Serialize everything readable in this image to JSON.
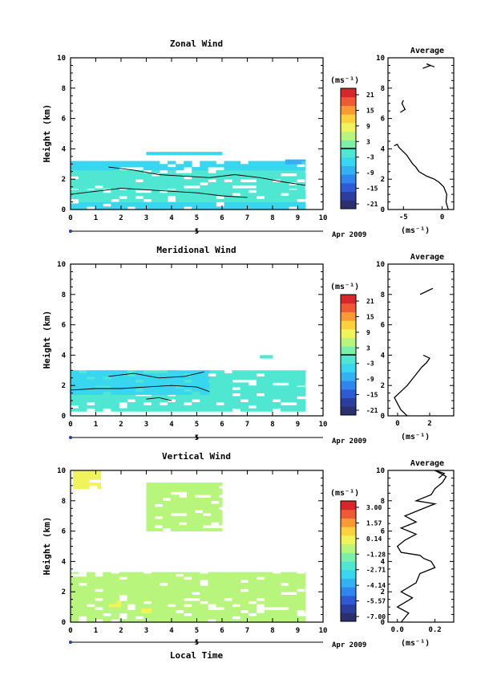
{
  "colors": {
    "colorbar": [
      "#2a2f6e",
      "#2b3e9e",
      "#2f5ad6",
      "#2f86ee",
      "#33b1f2",
      "#39d6f0",
      "#4fe7d2",
      "#7df0a8",
      "#b8f57c",
      "#eef45a",
      "#fbd23e",
      "#f99a35",
      "#ef5a33",
      "#d6282b"
    ],
    "blank": "#ffffff",
    "axis": "#000000"
  },
  "date_label": "Apr 2009",
  "date_tick_label": "5",
  "xlabel_bottom": "Local Time",
  "panels": [
    {
      "title": "Zonal Wind",
      "ylabel": "Height (km)",
      "unit_label": "(ms⁻¹)",
      "colorbar_ticks": [
        "21",
        "15",
        "9",
        "3",
        "-3",
        "-9",
        "-15",
        "-21"
      ],
      "colorbar_range": [
        -24,
        24
      ],
      "profile_title": "Average",
      "profile_xticks": [
        "-5",
        "0"
      ],
      "profile_xlabel": "(ms⁻¹)"
    },
    {
      "title": "Meridional Wind",
      "ylabel": "Height (km)",
      "unit_label": "(ms⁻¹)",
      "colorbar_ticks": [
        "21",
        "15",
        "9",
        "3",
        "-3",
        "-9",
        "-15",
        "-21"
      ],
      "colorbar_range": [
        -24,
        24
      ],
      "profile_title": "Average",
      "profile_xticks": [
        "0",
        "2"
      ],
      "profile_xlabel": "(ms⁻¹)"
    },
    {
      "title": "Vertical Wind",
      "ylabel": "Height (km)",
      "unit_label": "(ms⁻¹)",
      "colorbar_ticks": [
        "3.00",
        "1.57",
        "0.14",
        "-1.28",
        "-2.71",
        "-4.14",
        "-5.57",
        "-7.00"
      ],
      "colorbar_range": [
        -7.7,
        3.7
      ],
      "profile_title": "Average",
      "profile_xticks": [
        "0.0",
        "0.2"
      ],
      "profile_xlabel": "(ms⁻¹)"
    }
  ],
  "chart_data": [
    {
      "type": "heatmap",
      "title": "Zonal Wind",
      "xlabel": "",
      "ylabel": "Height (km)",
      "xlim": [
        0,
        10
      ],
      "ylim": [
        0,
        10
      ],
      "xticks": [
        0,
        1,
        2,
        3,
        4,
        5,
        6,
        7,
        8,
        9,
        10
      ],
      "yticks": [
        0,
        2,
        4,
        6,
        8,
        10
      ],
      "colorbar_unit": "(ms⁻¹)",
      "regions": [
        {
          "t0": 0.0,
          "t1": 9.3,
          "z0": 0.0,
          "z1": 0.5,
          "value": -3,
          "color_index": 5
        },
        {
          "t0": 0.0,
          "t1": 9.3,
          "z0": 0.5,
          "z1": 1.4,
          "value": 0,
          "color_index": 6
        },
        {
          "t0": 0.0,
          "t1": 9.3,
          "z0": 1.4,
          "z1": 2.6,
          "value": 0,
          "color_index": 6
        },
        {
          "t0": 0.0,
          "t1": 9.3,
          "z0": 2.6,
          "z1": 3.2,
          "value": -3,
          "color_index": 5
        },
        {
          "t0": 3.0,
          "t1": 6.0,
          "z0": 3.6,
          "z1": 3.8,
          "value": -3,
          "color_index": 5
        },
        {
          "t0": 8.5,
          "t1": 9.3,
          "z0": 3.0,
          "z1": 3.3,
          "value": -6,
          "color_index": 4
        }
      ],
      "contours": [
        {
          "level": 0,
          "points": [
            [
              0.0,
              1.0
            ],
            [
              1.0,
              1.2
            ],
            [
              2.0,
              1.4
            ],
            [
              3.0,
              1.3
            ],
            [
              4.0,
              1.2
            ],
            [
              5.0,
              1.1
            ],
            [
              6.0,
              0.9
            ],
            [
              7.0,
              0.8
            ]
          ]
        },
        {
          "level": 0,
          "points": [
            [
              1.5,
              2.8
            ],
            [
              2.5,
              2.6
            ],
            [
              3.5,
              2.3
            ],
            [
              4.5,
              2.2
            ],
            [
              5.5,
              2.1
            ],
            [
              6.5,
              2.3
            ],
            [
              7.5,
              2.1
            ],
            [
              8.5,
              1.8
            ],
            [
              9.3,
              1.6
            ]
          ]
        }
      ],
      "profile": {
        "title": "Average",
        "xlim": [
          -7,
          1.5
        ],
        "ylim": [
          0,
          10
        ],
        "x": [
          0.8,
          0.5,
          0.6,
          0.2,
          -0.4,
          -1.0,
          -2.0,
          -3.0,
          -3.4,
          -3.8,
          -4.2,
          -4.6,
          -5.2,
          -5.6,
          -5.8,
          -6.2,
          -5.4,
          -4.8,
          -5.0,
          -5.2,
          -5.0,
          -2.5,
          -1.5,
          -2.0,
          -1.0
        ],
        "z": [
          0.0,
          0.5,
          1.0,
          1.5,
          1.8,
          2.0,
          2.2,
          2.5,
          2.8,
          3.0,
          3.3,
          3.6,
          3.9,
          4.1,
          4.3,
          4.2,
          6.4,
          6.6,
          6.8,
          7.0,
          7.2,
          9.3,
          9.5,
          9.6,
          9.4
        ]
      }
    },
    {
      "type": "heatmap",
      "title": "Meridional Wind",
      "xlabel": "",
      "ylabel": "Height (km)",
      "xlim": [
        0,
        10
      ],
      "ylim": [
        0,
        10
      ],
      "xticks": [
        0,
        1,
        2,
        3,
        4,
        5,
        6,
        7,
        8,
        9,
        10
      ],
      "yticks": [
        0,
        2,
        4,
        6,
        8,
        10
      ],
      "colorbar_unit": "(ms⁻¹)",
      "regions": [
        {
          "t0": 0.0,
          "t1": 9.3,
          "z0": 0.3,
          "z1": 2.0,
          "value": 0,
          "color_index": 6
        },
        {
          "t0": 0.0,
          "t1": 9.3,
          "z0": 2.0,
          "z1": 3.0,
          "value": 0,
          "color_index": 6
        },
        {
          "t0": 0.0,
          "t1": 5.5,
          "z0": 1.4,
          "z1": 3.0,
          "value": -3,
          "color_index": 5
        },
        {
          "t0": 7.5,
          "t1": 8.0,
          "z0": 3.8,
          "z1": 4.0,
          "value": 0,
          "color_index": 6
        },
        {
          "t0": 5.8,
          "t1": 5.9,
          "z0": 6.6,
          "z1": 6.7,
          "value": 0,
          "color_index": 6
        }
      ],
      "contours": [
        {
          "level": 0,
          "points": [
            [
              0.0,
              1.7
            ],
            [
              1.0,
              1.8
            ],
            [
              2.0,
              1.8
            ],
            [
              3.0,
              1.9
            ],
            [
              4.0,
              2.0
            ],
            [
              5.0,
              1.9
            ],
            [
              5.5,
              1.6
            ]
          ]
        },
        {
          "level": 0,
          "points": [
            [
              1.5,
              2.6
            ],
            [
              2.5,
              2.8
            ],
            [
              3.5,
              2.5
            ],
            [
              4.5,
              2.6
            ],
            [
              5.3,
              2.9
            ]
          ]
        },
        {
          "level": 0,
          "points": [
            [
              3.0,
              1.1
            ],
            [
              3.5,
              1.2
            ],
            [
              4.0,
              1.0
            ]
          ]
        }
      ],
      "profile": {
        "title": "Average",
        "xlim": [
          -0.6,
          3.5
        ],
        "ylim": [
          0,
          10
        ],
        "x": [
          0.6,
          0.2,
          0.0,
          -0.2,
          0.2,
          0.6,
          0.9,
          1.2,
          1.5,
          1.8,
          2.0,
          1.6,
          2.2,
          1.8,
          1.4,
          1.8
        ],
        "z": [
          0.0,
          0.4,
          0.8,
          1.2,
          1.6,
          2.0,
          2.4,
          2.8,
          3.2,
          3.5,
          3.8,
          4.0,
          8.4,
          8.2,
          8.0,
          8.2
        ]
      }
    },
    {
      "type": "heatmap",
      "title": "Vertical Wind",
      "xlabel": "Local Time",
      "ylabel": "Height (km)",
      "xlim": [
        0,
        10
      ],
      "ylim": [
        0,
        10
      ],
      "xticks": [
        0,
        1,
        2,
        3,
        4,
        5,
        6,
        7,
        8,
        9,
        10
      ],
      "yticks": [
        0,
        2,
        4,
        6,
        8,
        10
      ],
      "colorbar_unit": "(ms⁻¹)",
      "regions": [
        {
          "t0": 0.0,
          "t1": 9.3,
          "z0": 0.0,
          "z1": 3.3,
          "value": 0.14,
          "color_index": 8
        },
        {
          "t0": 3.0,
          "t1": 6.0,
          "z0": 6.0,
          "z1": 9.2,
          "value": 0.14,
          "color_index": 8
        },
        {
          "t0": 0.1,
          "t1": 1.2,
          "z0": 8.8,
          "z1": 10.0,
          "value": 1.0,
          "color_index": 9
        },
        {
          "t0": 1.5,
          "t1": 2.0,
          "z0": 1.0,
          "z1": 1.4,
          "value": 1.0,
          "color_index": 9
        },
        {
          "t0": 2.8,
          "t1": 3.2,
          "z0": 0.6,
          "z1": 0.9,
          "value": 1.0,
          "color_index": 9
        }
      ],
      "contours": [],
      "profile": {
        "title": "Average",
        "xlim": [
          -0.05,
          0.3
        ],
        "ylim": [
          0,
          10
        ],
        "x": [
          0.02,
          0.06,
          0.0,
          0.08,
          0.02,
          0.1,
          0.12,
          0.2,
          0.18,
          0.14,
          0.12,
          0.02,
          0.0,
          0.04,
          0.1,
          0.02,
          0.1,
          0.04,
          0.12,
          0.2,
          0.1,
          0.18,
          0.2,
          0.24,
          0.26,
          0.2,
          0.25,
          0.22
        ],
        "z": [
          0.0,
          0.6,
          1.0,
          1.6,
          2.0,
          2.6,
          3.2,
          3.6,
          4.0,
          4.2,
          4.4,
          4.6,
          5.0,
          5.4,
          5.8,
          6.2,
          6.6,
          7.0,
          7.4,
          7.8,
          8.0,
          8.4,
          8.8,
          9.2,
          9.6,
          10.0,
          9.8,
          9.5
        ]
      }
    }
  ]
}
